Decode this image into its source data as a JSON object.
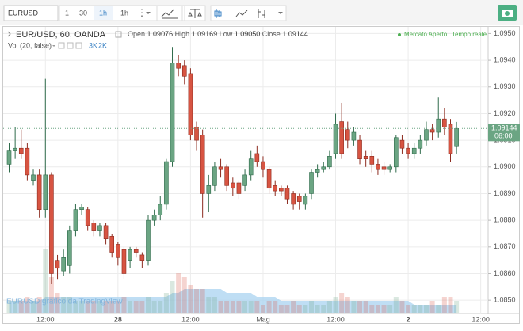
{
  "toolbar": {
    "symbol": "EURUSD",
    "intervals": [
      "1",
      "30",
      "1h"
    ],
    "selected_interval": "1h"
  },
  "chart_data": {
    "type": "candlestick",
    "title": "EUR/USD, 60, OANDA",
    "status": [
      "Mercato Aperto",
      "Tempo reale"
    ],
    "watermark": "EURUSD grafico da TradingView",
    "ohlc_names": [
      "Open",
      "High",
      "Low",
      "Close"
    ],
    "last_labels": [
      "1.09076",
      "1.09169",
      "1.09050",
      "1.09144"
    ],
    "countdown": "06:00",
    "up_color": "#6ba583",
    "down_color": "#d75442",
    "categories": [
      null,
      null,
      null,
      null,
      null,
      null,
      "12:00",
      null,
      null,
      null,
      null,
      null,
      null,
      null,
      null,
      null,
      null,
      null,
      "28",
      null,
      null,
      null,
      null,
      null,
      null,
      null,
      null,
      null,
      null,
      null,
      "12:00",
      null,
      null,
      null,
      null,
      null,
      null,
      null,
      null,
      null,
      null,
      null,
      "Mag",
      null,
      null,
      null,
      null,
      null,
      null,
      null,
      null,
      null,
      null,
      null,
      "12:00",
      null,
      null,
      null,
      null,
      null,
      null,
      null,
      null,
      null,
      null,
      null,
      "2",
      null,
      null,
      null,
      null,
      null,
      null,
      null,
      null,
      null,
      null,
      null,
      "12:00"
    ],
    "open": [
      1.0901,
      1.0906,
      1.0907,
      1.0907,
      1.0895,
      1.0897,
      1.0884,
      1.0897,
      1.0865,
      1.0861,
      1.0863,
      1.0876,
      1.0884,
      1.0884,
      1.0879,
      1.0876,
      1.0878,
      1.0874,
      1.0871,
      1.0869,
      1.0865,
      1.0869,
      1.0867,
      1.0865,
      1.088,
      1.0882,
      1.0886,
      1.0902,
      1.0939,
      1.0938,
      1.0935,
      1.0915,
      1.0912,
      1.089,
      1.0893,
      1.09,
      1.09,
      1.0894,
      1.0894,
      1.0893,
      1.0897,
      1.0905,
      1.0902,
      1.0899,
      1.0893,
      1.0892,
      1.0892,
      1.089,
      1.0889,
      1.0886,
      1.089,
      1.0898,
      1.0899,
      1.09,
      1.0905,
      1.0917,
      1.0914,
      1.091,
      1.091,
      1.0904,
      1.0904,
      1.0901,
      1.09,
      1.0899,
      1.09,
      1.091,
      1.0907,
      1.0905,
      1.0907,
      1.091,
      1.0914,
      1.0913,
      1.0918,
      1.0916,
      1.09076,
      null,
      null,
      null,
      null
    ],
    "high": [
      1.0909,
      1.0915,
      1.0914,
      1.0909,
      1.0899,
      1.0899,
      1.0933,
      1.0898,
      1.0867,
      1.0869,
      1.0878,
      1.0886,
      1.0886,
      1.0885,
      1.088,
      1.0879,
      1.0879,
      1.0875,
      1.0872,
      1.087,
      1.087,
      1.087,
      1.0868,
      1.0882,
      1.0884,
      1.0889,
      1.0903,
      1.0945,
      1.0942,
      1.094,
      1.0937,
      1.0917,
      1.0914,
      1.0897,
      1.0902,
      1.0903,
      1.0901,
      1.0896,
      1.0895,
      1.0899,
      1.0906,
      1.0908,
      1.0904,
      1.09,
      1.0895,
      1.0893,
      1.0893,
      1.0891,
      1.089,
      1.089,
      1.0899,
      1.0901,
      1.0902,
      1.0906,
      1.092,
      1.0924,
      1.0917,
      1.0915,
      1.0912,
      1.0906,
      1.0906,
      1.0903,
      1.0902,
      1.0901,
      1.0912,
      1.0912,
      1.0909,
      1.0909,
      1.0912,
      1.0917,
      1.0916,
      1.0926,
      1.0922,
      1.0918,
      1.09169,
      null,
      null,
      null,
      null
    ],
    "low": [
      1.0898,
      1.0903,
      1.0903,
      1.0895,
      1.0893,
      1.0881,
      1.0881,
      1.0856,
      1.0858,
      1.0859,
      1.086,
      1.0874,
      1.0882,
      1.0876,
      1.0874,
      1.0874,
      1.0871,
      1.0866,
      1.0863,
      1.0858,
      1.0862,
      1.0866,
      1.0862,
      1.0863,
      1.0878,
      1.088,
      1.0884,
      1.09,
      1.0934,
      1.0931,
      1.091,
      1.0906,
      1.0881,
      1.0883,
      1.0891,
      1.0896,
      1.0891,
      1.0889,
      1.0888,
      1.0891,
      1.0895,
      1.09,
      1.0896,
      1.089,
      1.0889,
      1.0889,
      1.0886,
      1.0884,
      1.0884,
      1.0884,
      1.0888,
      1.0896,
      1.0898,
      1.0899,
      1.0903,
      1.0903,
      1.0907,
      1.0908,
      1.0901,
      1.09,
      1.0898,
      1.0897,
      1.0897,
      1.0898,
      1.0898,
      1.0905,
      1.0903,
      1.0903,
      1.0905,
      1.0908,
      1.091,
      1.0911,
      1.0912,
      1.0902,
      1.0905,
      null,
      null,
      null,
      null
    ],
    "close": [
      1.0906,
      1.0907,
      1.0905,
      1.0897,
      1.0897,
      1.0884,
      1.0897,
      1.086,
      1.0862,
      1.0866,
      1.0876,
      1.0884,
      1.0885,
      1.0878,
      1.0876,
      1.0878,
      1.0873,
      1.0868,
      1.0866,
      1.086,
      1.0869,
      1.0868,
      1.0865,
      1.088,
      1.0882,
      1.0886,
      1.0902,
      1.0939,
      1.0937,
      1.0934,
      1.0912,
      1.091,
      1.089,
      1.0893,
      1.09,
      1.0899,
      1.0893,
      1.0892,
      1.089,
      1.0897,
      1.0903,
      1.0902,
      1.0899,
      1.0892,
      1.0891,
      1.0891,
      1.0888,
      1.0886,
      1.0887,
      1.0889,
      1.0898,
      1.0899,
      1.09,
      1.0904,
      1.0916,
      1.0905,
      1.091,
      1.0913,
      1.0903,
      1.0903,
      1.0901,
      1.0899,
      1.0899,
      1.09,
      1.0911,
      1.0907,
      1.0905,
      1.0907,
      1.091,
      1.0914,
      1.0913,
      1.0918,
      1.0915,
      1.0905,
      1.09144,
      null,
      null,
      null,
      null
    ],
    "volume": {
      "name": "Vol (20, false)",
      "last_labels": [
        "3K",
        "2K"
      ],
      "values": [
        3,
        3,
        3,
        4,
        3,
        4,
        16,
        9,
        5,
        4,
        4,
        3,
        3,
        3,
        3,
        3,
        3,
        3,
        3,
        4,
        3,
        3,
        3,
        4,
        3,
        3,
        5,
        8,
        10,
        9,
        7,
        6,
        6,
        4,
        4,
        3,
        3,
        3,
        3,
        3,
        3,
        3,
        2,
        3,
        3,
        2,
        2,
        3,
        2,
        2,
        3,
        2,
        2,
        3,
        4,
        5,
        4,
        3,
        3,
        3,
        2,
        2,
        2,
        2,
        4,
        3,
        2,
        2,
        2,
        2,
        3,
        2,
        4,
        4,
        3,
        null,
        null,
        null,
        null
      ],
      "ma": [
        3,
        3,
        3,
        3,
        3,
        3,
        4,
        4,
        4,
        4,
        4,
        4,
        4,
        4,
        4,
        4,
        4,
        4,
        4,
        4,
        4,
        4,
        4,
        4,
        4,
        4,
        4,
        5,
        5,
        6,
        6,
        6,
        6,
        6,
        6,
        6,
        5,
        5,
        5,
        5,
        5,
        4,
        4,
        4,
        4,
        3,
        3,
        3,
        3,
        3,
        3,
        3,
        3,
        3,
        3,
        3,
        3,
        3,
        3,
        3,
        3,
        3,
        3,
        3,
        3,
        3,
        3,
        2,
        2,
        2,
        2,
        2,
        2,
        2,
        2,
        null,
        null,
        null,
        null
      ]
    },
    "ylim": [
      1.0845,
      1.09525
    ],
    "yticks": [
      {
        "value": 1.085,
        "label": "1.0850"
      },
      {
        "value": 1.086,
        "label": "1.0860"
      },
      {
        "value": 1.087,
        "label": "1.0870"
      },
      {
        "value": 1.088,
        "label": "1.0880"
      },
      {
        "value": 1.089,
        "label": "1.0890"
      },
      {
        "value": 1.09,
        "label": "1.0900"
      },
      {
        "value": 1.091,
        "label": "1.0910"
      },
      {
        "value": 1.092,
        "label": "1.0920"
      },
      {
        "value": 1.093,
        "label": "1.0930"
      },
      {
        "value": 1.094,
        "label": "1.0940"
      },
      {
        "value": 1.095,
        "label": "1.0950"
      }
    ],
    "grid": true
  }
}
